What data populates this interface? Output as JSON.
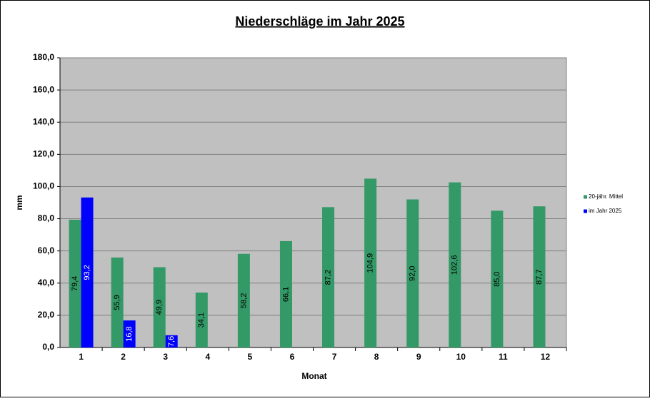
{
  "chart_data": {
    "type": "bar",
    "title": "Niederschläge im Jahr  2025",
    "x_label": "Monat",
    "y_label": "mm",
    "categories": [
      "1",
      "2",
      "3",
      "4",
      "5",
      "6",
      "7",
      "8",
      "9",
      "10",
      "11",
      "12"
    ],
    "series": [
      {
        "name": "20-jähr. Mittel",
        "color": "#339966",
        "values": [
          79.4,
          55.9,
          49.9,
          34.1,
          58.2,
          66.1,
          87.2,
          104.9,
          92.0,
          102.6,
          85.0,
          87.7
        ],
        "value_labels": [
          "79,4",
          "55,9",
          "49,9",
          "34,1",
          "58,2",
          "66,1",
          "87,2",
          "104,9",
          "92,0",
          "102,6",
          "85,0",
          "87,7"
        ]
      },
      {
        "name": "im Jahr 2025",
        "color": "#0000ff",
        "values": [
          93.2,
          16.8,
          7.6,
          null,
          null,
          null,
          null,
          null,
          null,
          null,
          null,
          null
        ],
        "value_labels": [
          "93,2",
          "16,8",
          "7,6",
          null,
          null,
          null,
          null,
          null,
          null,
          null,
          null,
          null
        ]
      }
    ],
    "ylim": [
      0,
      180
    ],
    "yticks": [
      {
        "value": 0,
        "label": "0,0"
      },
      {
        "value": 20,
        "label": "20,0"
      },
      {
        "value": 40,
        "label": "40,0"
      },
      {
        "value": 60,
        "label": "60,0"
      },
      {
        "value": 80,
        "label": "80,0"
      },
      {
        "value": 100,
        "label": "100,0"
      },
      {
        "value": 120,
        "label": "120,0"
      },
      {
        "value": 140,
        "label": "140,0"
      },
      {
        "value": 160,
        "label": "160,0"
      },
      {
        "value": 180,
        "label": "180,0"
      }
    ],
    "grid": true,
    "legend": "right"
  }
}
